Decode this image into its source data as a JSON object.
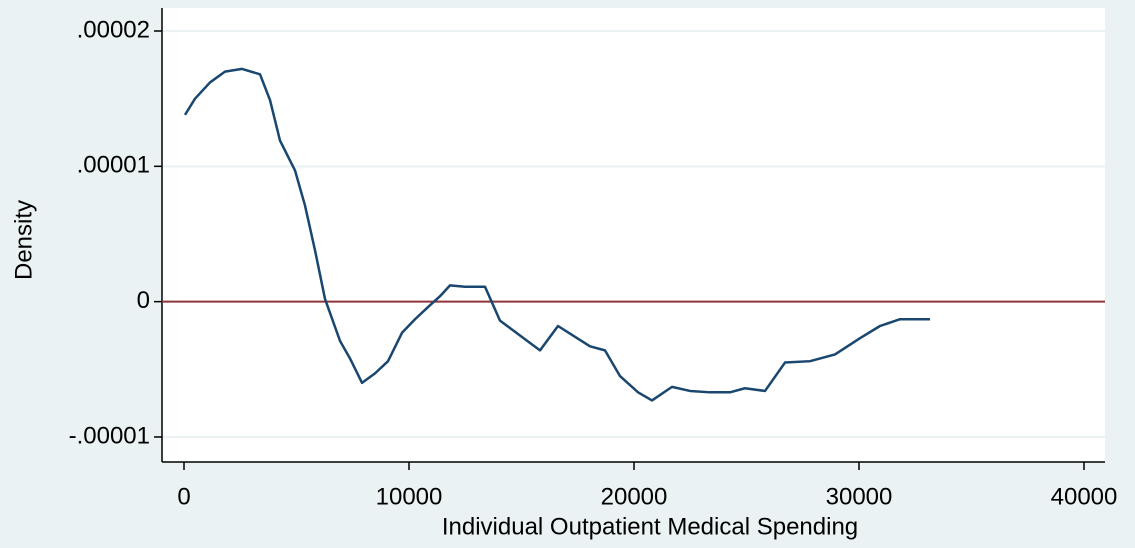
{
  "chart_data": {
    "type": "line",
    "y_label": "Density",
    "x_label": "Individual Outpatient Medical Spending",
    "x": [
      44,
      489,
      1156,
      1822,
      2578,
      3378,
      3822,
      4267,
      4933,
      5378,
      5822,
      6267,
      6933,
      7378,
      7911,
      8489,
      9067,
      9689,
      10267,
      10844,
      11378,
      11822,
      12489,
      13378,
      14044,
      14933,
      15822,
      16622,
      17378,
      18044,
      18711,
      19378,
      20178,
      20800,
      21689,
      22489,
      23378,
      24267,
      24933,
      25822,
      26711,
      27822,
      28933,
      30044,
      30933,
      31822,
      33156
    ],
    "series": [
      {
        "color": "#1a476f",
        "values": [
          1.38e-05,
          1.5e-05,
          1.62e-05,
          1.7e-05,
          1.72e-05,
          1.68e-05,
          1.49e-05,
          1.19e-05,
          9.7e-06,
          7.1e-06,
          3.8e-06,
          2e-07,
          -2.9e-06,
          -4.2e-06,
          -6e-06,
          -5.3e-06,
          -4.4e-06,
          -2.3e-06,
          -1.3e-06,
          -4e-07,
          4e-07,
          1.2e-06,
          1.1e-06,
          1.1e-06,
          -1.4e-06,
          -2.5e-06,
          -3.6e-06,
          -1.8e-06,
          -2.6e-06,
          -3.3e-06,
          -3.6e-06,
          -5.5e-06,
          -6.7e-06,
          -7.3e-06,
          -6.3e-06,
          -6.6e-06,
          -6.7e-06,
          -6.7e-06,
          -6.4e-06,
          -6.6e-06,
          -4.5e-06,
          -4.4e-06,
          -3.9e-06,
          -2.7e-06,
          -1.8e-06,
          -1.3e-06,
          -1.3e-06
        ]
      }
    ],
    "hline": 0,
    "hline_color": "#90353b",
    "xlim": [
      -978,
      40933
    ],
    "ylim": [
      -1.185e-05,
      2.17e-05
    ],
    "xticks": [
      0,
      10000,
      20000,
      30000,
      40000
    ],
    "yticks": [
      {
        "value": -1e-05,
        "label": "-.00001"
      },
      0,
      {
        "value": 1e-05,
        "label": ".00001"
      },
      {
        "value": 2e-05,
        "label": ".00002"
      }
    ],
    "grid": true
  }
}
